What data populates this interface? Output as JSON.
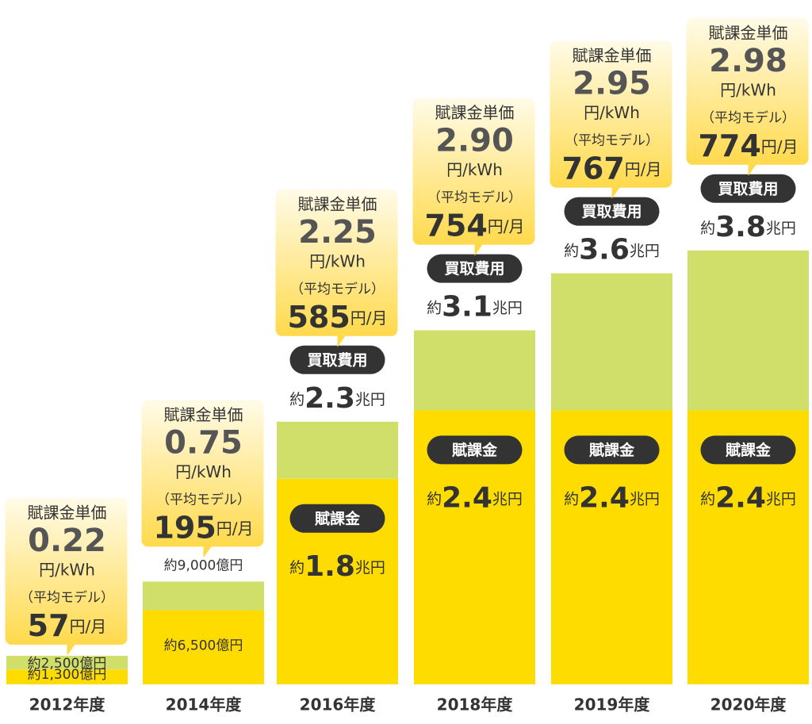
{
  "chart_data": {
    "type": "bar",
    "stacked": true,
    "categories": [
      "2012年度",
      "2014年度",
      "2016年度",
      "2018年度",
      "2019年度",
      "2020年度"
    ],
    "series": [
      {
        "name": "賦課金",
        "color": "#ffdc00",
        "values": [
          0.13,
          0.65,
          1.8,
          2.4,
          2.4,
          2.4
        ],
        "value_labels": [
          "約1,300億円",
          "約6,500億円",
          "約1.8兆円",
          "約2.4兆円",
          "約2.4兆円",
          "約2.4兆円"
        ]
      },
      {
        "color": "#cfdf6a",
        "values": [
          0.12,
          0.25,
          0.5,
          0.7,
          1.2,
          1.4
        ]
      }
    ],
    "total_name": "買取費用",
    "totals": [
      0.25,
      0.9,
      2.3,
      3.1,
      3.6,
      3.8
    ],
    "total_labels": [
      "約2,500億円",
      "約9,000億円",
      "約2.3兆円",
      "約3.1兆円",
      "約3.6兆円",
      "約3.8兆円"
    ],
    "show_badges": [
      false,
      false,
      true,
      true,
      true,
      true
    ],
    "callouts": [
      {
        "title": "賦課金単価",
        "price": "0.22",
        "unit": "円/kWh",
        "model": "（平均モデル）",
        "monthly": "57円/月"
      },
      {
        "title": "賦課金単価",
        "price": "0.75",
        "unit": "円/kWh",
        "model": "（平均モデル）",
        "monthly": "195円/月"
      },
      {
        "title": "賦課金単価",
        "price": "2.25",
        "unit": "円/kWh",
        "model": "（平均モデル）",
        "monthly": "585円/月"
      },
      {
        "title": "賦課金単価",
        "price": "2.90",
        "unit": "円/kWh",
        "model": "（平均モデル）",
        "monthly": "754円/月"
      },
      {
        "title": "賦課金単価",
        "price": "2.95",
        "unit": "円/kWh",
        "model": "（平均モデル）",
        "monthly": "767円/月"
      },
      {
        "title": "賦課金単価",
        "price": "2.98",
        "unit": "円/kWh",
        "model": "（平均モデル）",
        "monthly": "774円/月"
      }
    ]
  }
}
